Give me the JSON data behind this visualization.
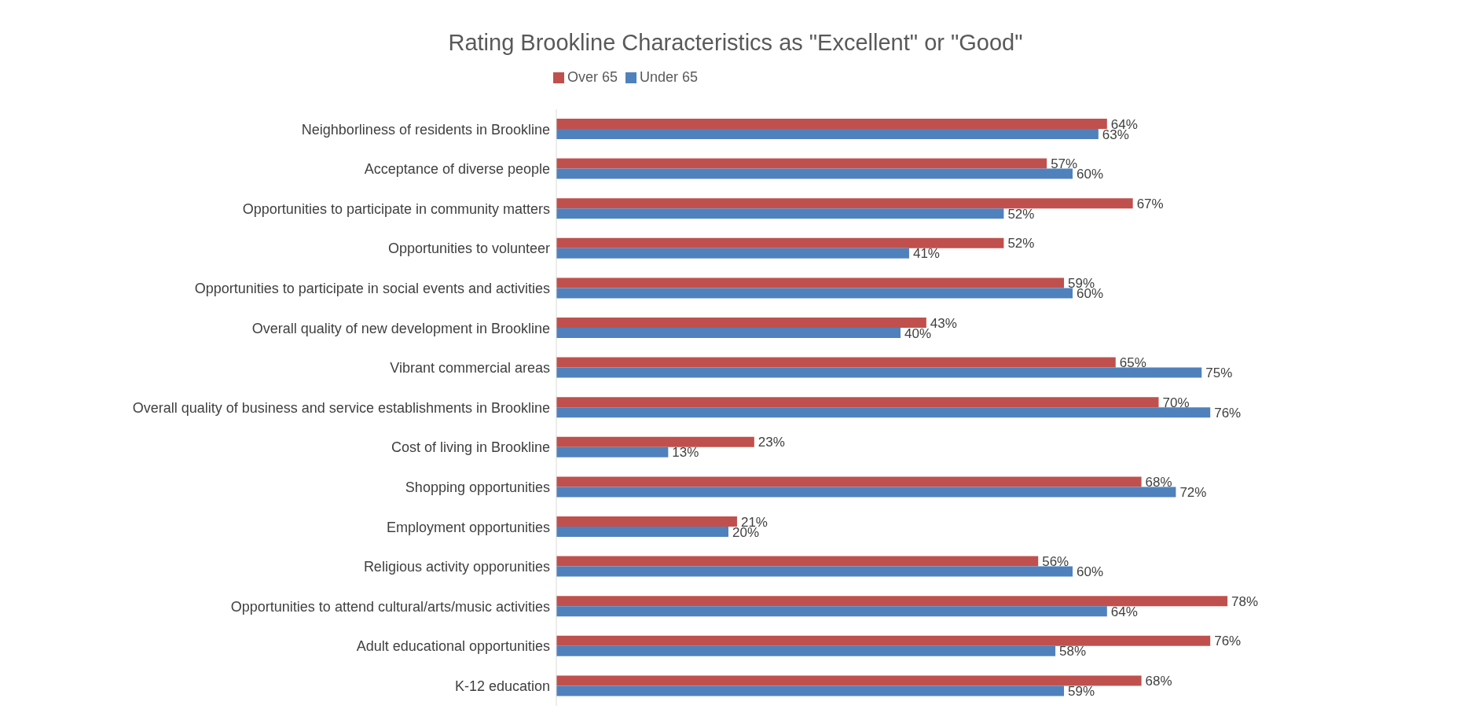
{
  "chart_data": {
    "type": "bar",
    "orientation": "horizontal",
    "title": "Rating Brookline Characteristics as \"Excellent\" or \"Good\"",
    "legend": "top",
    "tick_labels": "y",
    "categories": [
      "Neighborliness of residents in Brookline",
      "Acceptance of diverse people",
      "Opportunities to participate in community matters",
      "Opportunities to volunteer",
      "Opportunities to participate in social events and activities",
      "Overall quality of new development in Brookline",
      "Vibrant commercial areas",
      "Overall quality of business and service establishments in Brookline",
      "Cost of living in Brookline",
      "Shopping opportunities",
      "Employment opportunities",
      "Religious activity opporunities",
      "Opportunities to attend cultural/arts/music activities",
      "Adult educational opportunities",
      "K-12 education"
    ],
    "series": [
      {
        "name": "Over 65",
        "color": "#c0504d",
        "values": [
          64,
          57,
          67,
          52,
          59,
          43,
          65,
          70,
          23,
          68,
          21,
          56,
          78,
          76,
          68
        ],
        "value_labels": [
          "64%",
          "57%",
          "67%",
          "52%",
          "59%",
          "43%",
          "65%",
          "70%",
          "23%",
          "68%",
          "21%",
          "56%",
          "78%",
          "76%",
          "68%"
        ]
      },
      {
        "name": "Under 65",
        "color": "#4f81bd",
        "values": [
          63,
          60,
          52,
          41,
          60,
          40,
          75,
          76,
          13,
          72,
          20,
          60,
          64,
          58,
          59
        ],
        "value_labels": [
          "63%",
          "60%",
          "52%",
          "41%",
          "60%",
          "40%",
          "75%",
          "76%",
          "13%",
          "72%",
          "20%",
          "60%",
          "64%",
          "58%",
          "59%"
        ]
      }
    ]
  }
}
